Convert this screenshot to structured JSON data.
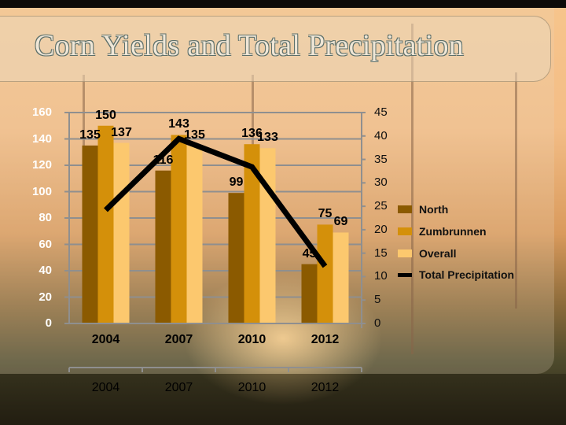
{
  "slide": {
    "title": "Corn Yields and Total Precipitation"
  },
  "chart_data": {
    "type": "bar",
    "title": "Corn Yields and Total Precipitation",
    "categories": [
      "2004",
      "2007",
      "2010",
      "2012"
    ],
    "series": [
      {
        "name": "North",
        "type": "bar",
        "axis": "left",
        "color": "#8b5a00",
        "values": [
          135,
          116,
          99,
          45
        ]
      },
      {
        "name": "Zumbrunnen",
        "type": "bar",
        "axis": "left",
        "color": "#d4900a",
        "values": [
          150,
          143,
          136,
          75
        ]
      },
      {
        "name": "Overall",
        "type": "bar",
        "axis": "left",
        "color": "#fcc86e",
        "values": [
          137,
          135,
          133,
          69
        ]
      },
      {
        "name": "Total Precipitation",
        "type": "line",
        "axis": "right",
        "color": "#000000",
        "values": [
          24.2,
          39.4,
          33.4,
          12.2
        ]
      }
    ],
    "data_labels": {
      "North": [
        "135",
        "116",
        "99",
        "45"
      ],
      "Zumbrunnen": [
        "150",
        "143",
        "136",
        "75"
      ],
      "Overall": [
        "137",
        "135",
        "133",
        "69"
      ]
    },
    "xlabel": "",
    "ylabel": "",
    "y_left": {
      "min": 0,
      "max": 160,
      "step": 20,
      "ticks": [
        "160",
        "140",
        "120",
        "100",
        "80",
        "60",
        "40",
        "20",
        "0"
      ]
    },
    "y_right": {
      "min": 0,
      "max": 45,
      "step": 5,
      "ticks": [
        "45",
        "40",
        "35",
        "30",
        "25",
        "20",
        "15",
        "10",
        "5",
        "0"
      ]
    },
    "x_tick_labels_primary": [
      "2004",
      "2007",
      "2010",
      "2012"
    ],
    "x_tick_labels_secondary": [
      "2004",
      "2007",
      "2010",
      "2012"
    ],
    "grid": true,
    "legend_position": "right"
  },
  "legend": {
    "items": [
      {
        "label": "North",
        "color": "#8b5a00"
      },
      {
        "label": "Zumbrunnen",
        "color": "#d4900a"
      },
      {
        "label": "Overall",
        "color": "#fcc86e"
      },
      {
        "label": "Total Precipitation",
        "color": "#000000"
      }
    ]
  }
}
